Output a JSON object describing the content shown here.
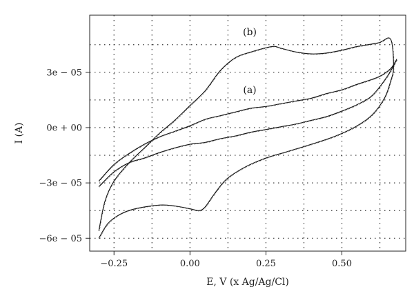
{
  "chart_data": {
    "type": "line",
    "title": "",
    "xlabel": "E, V (x Ag/Ag/Cl)",
    "ylabel": "I (A)",
    "xlim": [
      -0.33,
      0.71
    ],
    "ylim": [
      -6.7e-05,
      6.1e-05
    ],
    "grid": true,
    "x_ticks": [
      {
        "value": -0.25,
        "label": "−0.25"
      },
      {
        "value": 0.0,
        "label": "0.00"
      },
      {
        "value": 0.25,
        "label": "0.25"
      },
      {
        "value": 0.5,
        "label": "0.50"
      }
    ],
    "y_ticks": [
      {
        "value": 3e-05,
        "label": "3e − 05"
      },
      {
        "value": 0.0,
        "label": "0e + 00"
      },
      {
        "value": -3e-05,
        "label": "−3e − 05"
      },
      {
        "value": -6e-05,
        "label": "−6e − 05"
      }
    ],
    "x_grid": [
      -0.25,
      -0.125,
      0.0,
      0.125,
      0.25,
      0.375,
      0.5,
      0.625
    ],
    "y_grid": [
      4.5e-05,
      3e-05,
      1.5e-05,
      0.0,
      -1.5e-05,
      -3e-05,
      -4.5e-05,
      -6e-05
    ],
    "series": [
      {
        "name": "(a)",
        "points": [
          [
            -0.3,
            -3.2e-05
          ],
          [
            -0.25,
            -2.4e-05
          ],
          [
            -0.2,
            -1.9e-05
          ],
          [
            -0.15,
            -1.65e-05
          ],
          [
            -0.1,
            -1.35e-05
          ],
          [
            -0.05,
            -1.1e-05
          ],
          [
            0.0,
            -9e-06
          ],
          [
            0.05,
            -8e-06
          ],
          [
            0.1,
            -6e-06
          ],
          [
            0.15,
            -4.5e-06
          ],
          [
            0.2,
            -2.5e-06
          ],
          [
            0.25,
            -1e-06
          ],
          [
            0.3,
            5e-07
          ],
          [
            0.35,
            2e-06
          ],
          [
            0.4,
            4e-06
          ],
          [
            0.45,
            6e-06
          ],
          [
            0.5,
            9e-06
          ],
          [
            0.55,
            1.25e-05
          ],
          [
            0.6,
            1.75e-05
          ],
          [
            0.65,
            2.8e-05
          ],
          [
            0.68,
            3.7e-05
          ],
          [
            0.66,
            3.2e-05
          ],
          [
            0.62,
            2.75e-05
          ],
          [
            0.55,
            2.35e-05
          ],
          [
            0.5,
            2.05e-05
          ],
          [
            0.45,
            1.85e-05
          ],
          [
            0.4,
            1.6e-05
          ],
          [
            0.35,
            1.45e-05
          ],
          [
            0.3,
            1.3e-05
          ],
          [
            0.25,
            1.15e-05
          ],
          [
            0.2,
            1.05e-05
          ],
          [
            0.15,
            8.5e-06
          ],
          [
            0.1,
            6.5e-06
          ],
          [
            0.05,
            4.5e-06
          ],
          [
            0.0,
            1e-06
          ],
          [
            -0.05,
            -2e-06
          ],
          [
            -0.1,
            -5e-06
          ],
          [
            -0.15,
            -9e-06
          ],
          [
            -0.2,
            -1.4e-05
          ],
          [
            -0.25,
            -2e-05
          ],
          [
            -0.3,
            -2.9e-05
          ]
        ]
      },
      {
        "name": "(b)",
        "points": [
          [
            -0.3,
            -6e-05
          ],
          [
            -0.27,
            -5.2e-05
          ],
          [
            -0.23,
            -4.7e-05
          ],
          [
            -0.18,
            -4.4e-05
          ],
          [
            -0.1,
            -4.2e-05
          ],
          [
            -0.05,
            -4.25e-05
          ],
          [
            0.0,
            -4.4e-05
          ],
          [
            0.03,
            -4.5e-05
          ],
          [
            0.05,
            -4.3e-05
          ],
          [
            0.08,
            -3.6e-05
          ],
          [
            0.12,
            -2.8e-05
          ],
          [
            0.18,
            -2.15e-05
          ],
          [
            0.25,
            -1.65e-05
          ],
          [
            0.32,
            -1.3e-05
          ],
          [
            0.4,
            -9e-06
          ],
          [
            0.48,
            -4.5e-06
          ],
          [
            0.55,
            1e-06
          ],
          [
            0.6,
            7e-06
          ],
          [
            0.64,
            1.6e-05
          ],
          [
            0.66,
            2.5e-05
          ],
          [
            0.67,
            3.3e-05
          ],
          [
            0.66,
            4.8e-05
          ],
          [
            0.62,
            4.6e-05
          ],
          [
            0.55,
            4.4e-05
          ],
          [
            0.5,
            4.2e-05
          ],
          [
            0.45,
            4.05e-05
          ],
          [
            0.4,
            4e-05
          ],
          [
            0.35,
            4.1e-05
          ],
          [
            0.3,
            4.3e-05
          ],
          [
            0.27,
            4.4e-05
          ],
          [
            0.2,
            4.1e-05
          ],
          [
            0.15,
            3.8e-05
          ],
          [
            0.1,
            3.1e-05
          ],
          [
            0.05,
            2e-05
          ],
          [
            0.0,
            1.2e-05
          ],
          [
            -0.05,
            4e-06
          ],
          [
            -0.1,
            -3e-06
          ],
          [
            -0.15,
            -1.1e-05
          ],
          [
            -0.2,
            -1.9e-05
          ],
          [
            -0.25,
            -2.9e-05
          ],
          [
            -0.28,
            -4e-05
          ],
          [
            -0.3,
            -5.6e-05
          ]
        ]
      }
    ]
  }
}
